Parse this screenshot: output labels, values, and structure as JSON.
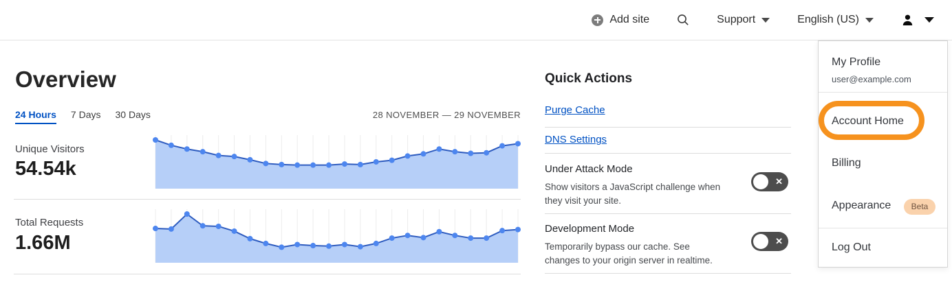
{
  "header": {
    "add_site_label": "Add site",
    "support_label": "Support",
    "language_label": "English (US)"
  },
  "main": {
    "title": "Overview",
    "tabs": [
      {
        "label": "24 Hours",
        "active": true
      },
      {
        "label": "7 Days",
        "active": false
      },
      {
        "label": "30 Days",
        "active": false
      }
    ],
    "date_range": "28 NOVEMBER — 29 NOVEMBER",
    "stats": [
      {
        "label": "Unique Visitors",
        "value": "54.54k"
      },
      {
        "label": "Total Requests",
        "value": "1.66M"
      }
    ]
  },
  "quick_actions": {
    "title": "Quick Actions",
    "links": [
      "Purge Cache",
      "DNS Settings"
    ],
    "toggles": [
      {
        "title": "Under Attack Mode",
        "description": "Show visitors a JavaScript challenge when they visit your site.",
        "state": "off"
      },
      {
        "title": "Development Mode",
        "description": "Temporarily bypass our cache. See changes to your origin server in realtime.",
        "state": "off"
      }
    ]
  },
  "account_menu": {
    "profile_label": "My Profile",
    "profile_email": "user@example.com",
    "items": [
      "Account Home",
      "Billing",
      "Appearance",
      "Log Out"
    ],
    "beta_badge": "Beta",
    "highlighted_item": "Account Home"
  },
  "icons": {
    "toggle_off_x": "✕"
  },
  "colors": {
    "link_blue": "#0051c3",
    "annotation_orange": "#f6921e",
    "toggle_off_bg": "#4d4d4d",
    "beta_badge_bg": "#fad2ac",
    "beta_badge_text": "#6e5340",
    "divider": "#dcdcdc",
    "chart_fill": "#b6cff8",
    "chart_line": "#2d5bbf",
    "chart_dot": "#4d86ef"
  },
  "chart_data": [
    {
      "type": "area",
      "title": "Unique Visitors",
      "total_label": "54.54k",
      "x_range_label": "28 NOVEMBER — 29 NOVEMBER",
      "x": [
        0,
        1,
        2,
        3,
        4,
        5,
        6,
        7,
        8,
        9,
        10,
        11,
        12,
        13,
        14,
        15,
        16,
        17,
        18,
        19,
        20,
        21,
        22,
        23
      ],
      "values_relative": [
        1.0,
        0.9,
        0.83,
        0.78,
        0.71,
        0.69,
        0.63,
        0.56,
        0.54,
        0.53,
        0.53,
        0.53,
        0.55,
        0.54,
        0.59,
        0.62,
        0.7,
        0.74,
        0.83,
        0.78,
        0.75,
        0.76,
        0.89,
        0.93
      ],
      "note": "y-axis unlabeled; point heights normalized to peak = 1.00, estimated from pixels",
      "grid": "vertical gridlines at each point, no axes shown",
      "legend": "none",
      "fill_color": "#b6cff8",
      "line_color": "#2d5bbf",
      "dot_color": "#4d86ef"
    },
    {
      "type": "area",
      "title": "Total Requests",
      "total_label": "1.66M",
      "x_range_label": "28 NOVEMBER — 29 NOVEMBER",
      "x": [
        0,
        1,
        2,
        3,
        4,
        5,
        6,
        7,
        8,
        9,
        10,
        11,
        12,
        13,
        14,
        15,
        16,
        17,
        18,
        19,
        20,
        21,
        22,
        23
      ],
      "values_relative": [
        0.73,
        0.72,
        1.0,
        0.78,
        0.77,
        0.68,
        0.54,
        0.45,
        0.38,
        0.43,
        0.41,
        0.4,
        0.43,
        0.39,
        0.45,
        0.55,
        0.6,
        0.56,
        0.67,
        0.6,
        0.55,
        0.55,
        0.69,
        0.71
      ],
      "note": "y-axis unlabeled; point heights normalized to peak = 1.00, estimated from pixels",
      "grid": "vertical gridlines at each point, no axes shown",
      "legend": "none",
      "fill_color": "#b6cff8",
      "line_color": "#2d5bbf",
      "dot_color": "#4d86ef"
    }
  ]
}
